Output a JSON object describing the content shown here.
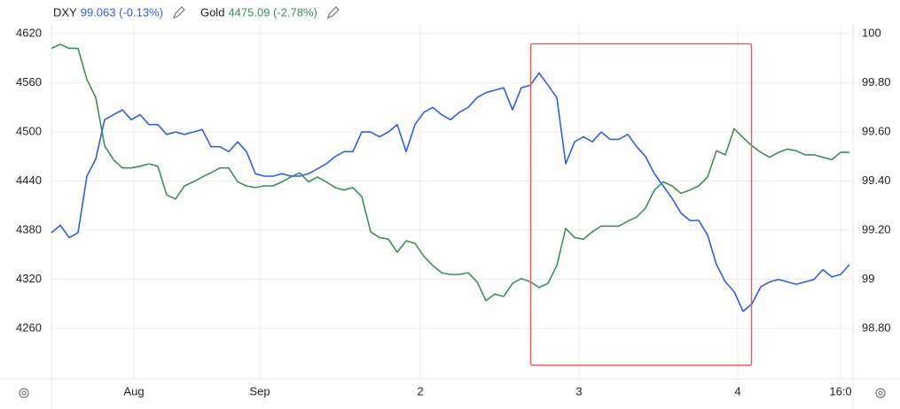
{
  "chart_data": {
    "type": "line",
    "series": [
      {
        "name": "DXY",
        "legend_label": "99.063 (-0.13%)",
        "color": "#2f5fe8",
        "axis": "y2",
        "values": [
          99.19,
          99.22,
          99.17,
          99.19,
          99.42,
          99.49,
          99.65,
          99.67,
          99.69,
          99.65,
          99.67,
          99.63,
          99.63,
          99.59,
          99.6,
          99.59,
          99.6,
          99.61,
          99.54,
          99.54,
          99.52,
          99.56,
          99.52,
          99.43,
          99.42,
          99.42,
          99.43,
          99.42,
          99.42,
          99.43,
          99.45,
          99.47,
          99.5,
          99.52,
          99.52,
          99.6,
          99.6,
          99.58,
          99.6,
          99.63,
          99.52,
          99.63,
          99.68,
          99.7,
          99.67,
          99.65,
          99.68,
          99.7,
          99.74,
          99.76,
          99.77,
          99.78,
          99.69,
          99.78,
          99.79,
          99.84,
          99.79,
          99.74,
          99.47,
          99.56,
          99.58,
          99.56,
          99.6,
          99.57,
          99.57,
          99.59,
          99.54,
          99.5,
          99.43,
          99.38,
          99.33,
          99.27,
          99.24,
          99.24,
          99.18,
          99.06,
          98.99,
          98.95,
          98.87,
          98.9,
          98.97,
          98.99,
          99.0,
          98.99,
          98.98,
          98.99,
          99.0,
          99.04,
          99.01,
          99.02,
          99.06
        ]
      },
      {
        "name": "Gold",
        "legend_label": "4475.09 (-2.78%)",
        "color": "#3d8f5a",
        "values": [
          4602,
          4607,
          4602,
          4602,
          4564,
          4542,
          4483,
          4466,
          4456,
          4456,
          4458,
          4461,
          4458,
          4423,
          4418,
          4434,
          4439,
          4445,
          4450,
          4456,
          4456,
          4439,
          4434,
          4432,
          4434,
          4434,
          4439,
          4445,
          4450,
          4439,
          4445,
          4439,
          4432,
          4429,
          4432,
          4421,
          4378,
          4371,
          4369,
          4353,
          4367,
          4364,
          4348,
          4337,
          4328,
          4326,
          4326,
          4328,
          4317,
          4294,
          4302,
          4299,
          4315,
          4321,
          4317,
          4310,
          4315,
          4337,
          4382,
          4371,
          4369,
          4378,
          4385,
          4385,
          4385,
          4391,
          4396,
          4407,
          4429,
          4439,
          4434,
          4425,
          4429,
          4434,
          4445,
          4477,
          4472,
          4504,
          4493,
          4483,
          4475,
          4469,
          4475,
          4479,
          4477,
          4472,
          4472,
          4469,
          4466,
          4475,
          4475
        ]
      }
    ],
    "xlim": [
      0,
      90.4
    ],
    "xticks": [
      {
        "value": 9.3,
        "label": "Aug"
      },
      {
        "value": 23.5,
        "label": "Sep"
      },
      {
        "value": 41.6,
        "label": "2"
      },
      {
        "value": 59.5,
        "label": "3"
      },
      {
        "value": 77.4,
        "label": "4"
      },
      {
        "value": 89,
        "label": "16:0"
      }
    ],
    "ylim": [
      4198.4,
      4628.6
    ],
    "yticks": [
      4260,
      4320,
      4380,
      4440,
      4500,
      4560,
      4620
    ],
    "y2lim": [
      98.595,
      100.029
    ],
    "y2ticks": [
      {
        "value": 98.8,
        "label": "98.80"
      },
      99,
      {
        "value": 99.2,
        "label": "99.20"
      },
      {
        "value": 99.4,
        "label": "99.40"
      },
      {
        "value": 99.6,
        "label": "99.60"
      },
      {
        "value": 99.8,
        "label": "99.80"
      },
      100
    ],
    "grid": true
  }
}
